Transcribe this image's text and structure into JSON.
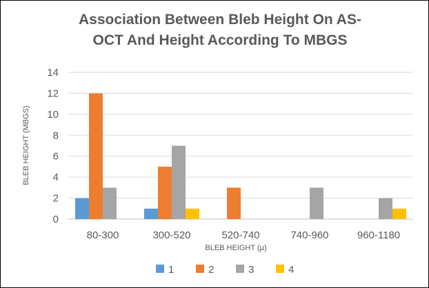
{
  "chart_data": {
    "type": "bar",
    "title_lines": [
      "Association Between Bleb Height On AS-",
      "OCT And Height According To MBGS"
    ],
    "xlabel": "BLEB HEIGHT (µ)",
    "ylabel": "BLEB HEIGHT (MBGS)",
    "categories": [
      "80-300",
      "300-520",
      "520-740",
      "740-960",
      "960-1180"
    ],
    "ylim": [
      0,
      14
    ],
    "yticks": [
      0,
      2,
      4,
      6,
      8,
      10,
      12,
      14
    ],
    "grid": true,
    "legend_position": "bottom",
    "series": [
      {
        "name": "1",
        "color": "#5b9bd5",
        "values": [
          2,
          1,
          0,
          0,
          0
        ]
      },
      {
        "name": "2",
        "color": "#ed7d31",
        "values": [
          12,
          5,
          3,
          0,
          0
        ]
      },
      {
        "name": "3",
        "color": "#a5a5a5",
        "values": [
          3,
          7,
          0,
          3,
          2
        ]
      },
      {
        "name": "4",
        "color": "#ffc000",
        "values": [
          0,
          1,
          0,
          0,
          1
        ]
      }
    ]
  }
}
